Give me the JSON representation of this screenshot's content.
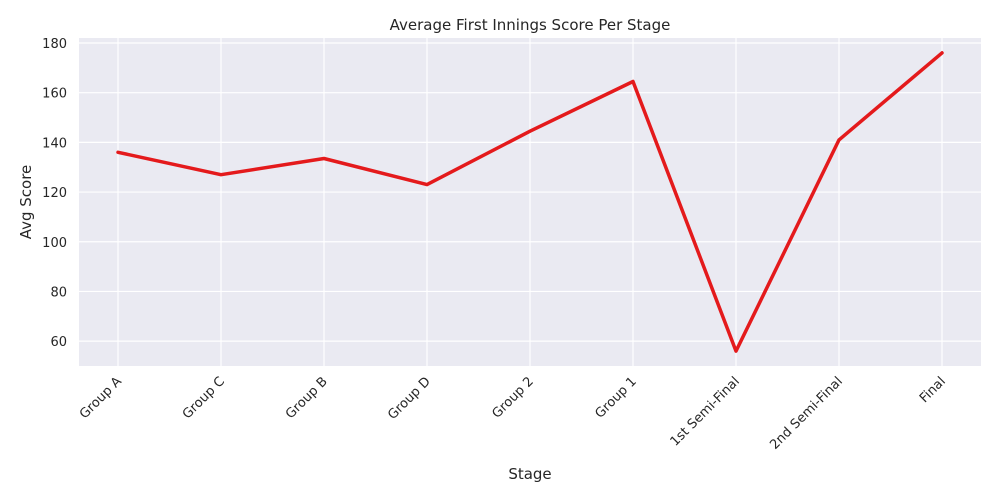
{
  "chart_data": {
    "type": "line",
    "title": "Average First Innings Score Per Stage",
    "xlabel": "Stage",
    "ylabel": "Avg Score",
    "categories": [
      "Group A",
      "Group C",
      "Group B",
      "Group D",
      "Group 2",
      "Group 1",
      "1st Semi-Final",
      "2nd Semi-Final",
      "Final"
    ],
    "series": [
      {
        "values": [
          136,
          127,
          133.5,
          123,
          144.5,
          164.5,
          56,
          141,
          176
        ],
        "color": "#e41a1c"
      }
    ],
    "ylim": [
      50.0,
      182.0
    ],
    "yticks": [
      60,
      80,
      100,
      120,
      140,
      160,
      180
    ],
    "grid": true,
    "plot_background": "#eaeaf2",
    "grid_color": "#ffffff",
    "text_color": "#262626"
  }
}
